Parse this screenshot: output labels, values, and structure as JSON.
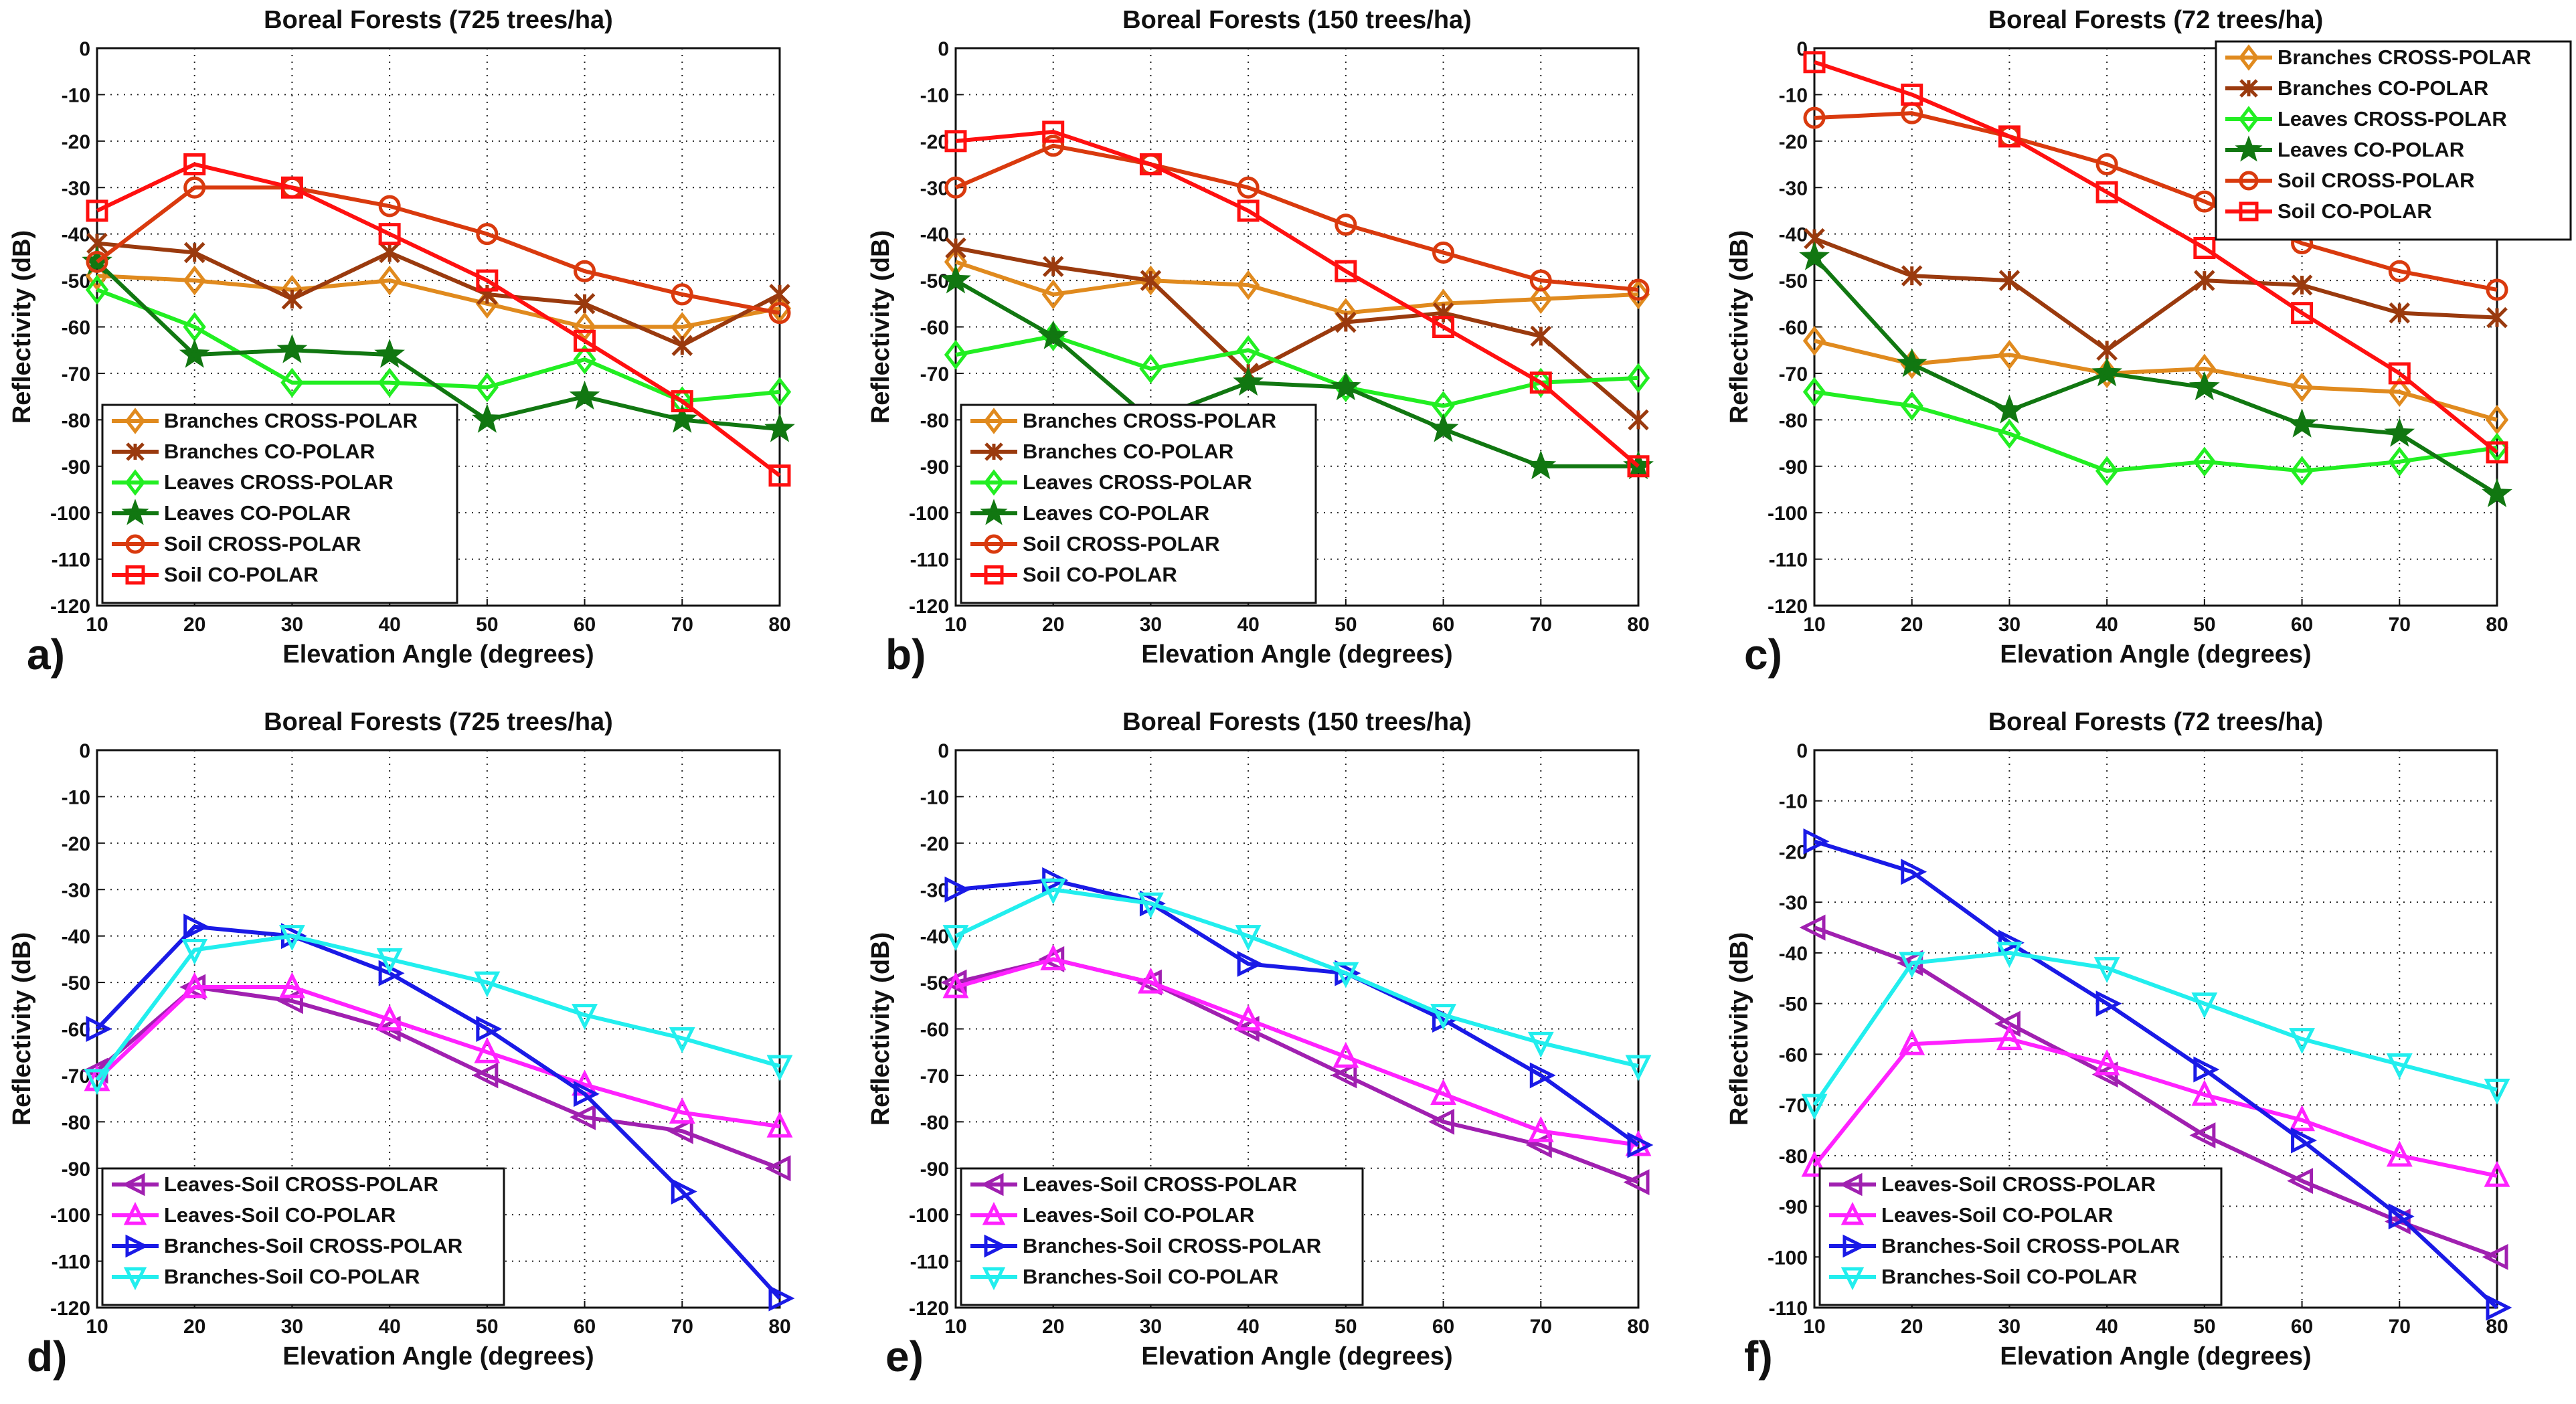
{
  "chart_data": [
    {
      "panel_label": "a)",
      "type": "line",
      "title": "Boreal Forests (725 trees/ha)",
      "xlabel": "Elevation Angle (degrees)",
      "ylabel": "Reflectivity (dB)",
      "x": [
        10,
        20,
        30,
        40,
        50,
        60,
        70,
        80
      ],
      "xticks": [
        "10",
        "20",
        "30",
        "40",
        "50",
        "60",
        "70",
        "80"
      ],
      "ylim": [
        -120,
        0
      ],
      "yticks": [
        "0",
        "-10",
        "-20",
        "-30",
        "-40",
        "-50",
        "-60",
        "-70",
        "-80",
        "-90",
        "-100",
        "-110",
        "-120"
      ],
      "grid": true,
      "legend_position": "bottom-left",
      "series": [
        {
          "name": "Branches CROSS-POLAR",
          "color": "#E08A1E",
          "marker": "diamond",
          "values": [
            -49,
            -50,
            -52,
            -50,
            -55,
            -60,
            -60,
            -56
          ]
        },
        {
          "name": "Branches CO-POLAR",
          "color": "#9A3A0E",
          "marker": "x-star",
          "values": [
            -42,
            -44,
            -54,
            -44,
            -53,
            -55,
            -64,
            -53
          ]
        },
        {
          "name": "Leaves CROSS-POLAR",
          "color": "#22EE22",
          "marker": "diamond",
          "values": [
            -52,
            -60,
            -72,
            -72,
            -73,
            -67,
            -76,
            -74
          ]
        },
        {
          "name": "Leaves CO-POLAR",
          "color": "#117711",
          "marker": "star",
          "values": [
            -46,
            -66,
            -65,
            -66,
            -80,
            -75,
            -80,
            -82
          ]
        },
        {
          "name": "Soil CROSS-POLAR",
          "color": "#D93A0E",
          "marker": "circle",
          "values": [
            -46,
            -30,
            -30,
            -34,
            -40,
            -48,
            -53,
            -57
          ]
        },
        {
          "name": "Soil CO-POLAR",
          "color": "#FF1010",
          "marker": "square",
          "values": [
            -35,
            -25,
            -30,
            -40,
            -50,
            -63,
            -76,
            -92
          ]
        }
      ]
    },
    {
      "panel_label": "b)",
      "type": "line",
      "title": "Boreal Forests (150 trees/ha)",
      "xlabel": "Elevation Angle (degrees)",
      "ylabel": "Reflectivity (dB)",
      "x": [
        10,
        20,
        30,
        40,
        50,
        60,
        70,
        80
      ],
      "xticks": [
        "10",
        "20",
        "30",
        "40",
        "50",
        "60",
        "70",
        "80"
      ],
      "ylim": [
        -120,
        0
      ],
      "yticks": [
        "0",
        "-10",
        "-20",
        "-30",
        "-40",
        "-50",
        "-60",
        "-70",
        "-80",
        "-90",
        "-100",
        "-110",
        "-120"
      ],
      "grid": true,
      "legend_position": "bottom-left",
      "series": [
        {
          "name": "Branches CROSS-POLAR",
          "color": "#E08A1E",
          "marker": "diamond",
          "values": [
            -46,
            -53,
            -50,
            -51,
            -57,
            -55,
            -54,
            -53
          ]
        },
        {
          "name": "Branches CO-POLAR",
          "color": "#9A3A0E",
          "marker": "x-star",
          "values": [
            -43,
            -47,
            -50,
            -70,
            -59,
            -57,
            -62,
            -80
          ]
        },
        {
          "name": "Leaves CROSS-POLAR",
          "color": "#22EE22",
          "marker": "diamond",
          "values": [
            -66,
            -62,
            -69,
            -65,
            -73,
            -77,
            -72,
            -71
          ]
        },
        {
          "name": "Leaves CO-POLAR",
          "color": "#117711",
          "marker": "star",
          "values": [
            -50,
            -62,
            -80,
            -72,
            -73,
            -82,
            -90,
            -90
          ]
        },
        {
          "name": "Soil CROSS-POLAR",
          "color": "#D93A0E",
          "marker": "circle",
          "values": [
            -30,
            -21,
            -25,
            -30,
            -38,
            -44,
            -50,
            -52
          ]
        },
        {
          "name": "Soil CO-POLAR",
          "color": "#FF1010",
          "marker": "square",
          "values": [
            -20,
            -18,
            -25,
            -35,
            -48,
            -60,
            -72,
            -90
          ]
        }
      ]
    },
    {
      "panel_label": "c)",
      "type": "line",
      "title": "Boreal Forests (72 trees/ha)",
      "xlabel": "Elevation Angle (degrees)",
      "ylabel": "Reflectivity (dB)",
      "x": [
        10,
        20,
        30,
        40,
        50,
        60,
        70,
        80
      ],
      "xticks": [
        "10",
        "20",
        "30",
        "40",
        "50",
        "60",
        "70",
        "80"
      ],
      "ylim": [
        -120,
        0
      ],
      "yticks": [
        "0",
        "-10",
        "-20",
        "-30",
        "-40",
        "-50",
        "-60",
        "-70",
        "-80",
        "-90",
        "-100",
        "-110",
        "-120"
      ],
      "grid": true,
      "legend_position": "top-right",
      "series": [
        {
          "name": "Branches CROSS-POLAR",
          "color": "#E08A1E",
          "marker": "diamond",
          "values": [
            -63,
            -68,
            -66,
            -70,
            -69,
            -73,
            -74,
            -80
          ]
        },
        {
          "name": "Branches CO-POLAR",
          "color": "#9A3A0E",
          "marker": "x-star",
          "values": [
            -41,
            -49,
            -50,
            -65,
            -50,
            -51,
            -57,
            -58
          ]
        },
        {
          "name": "Leaves CROSS-POLAR",
          "color": "#22EE22",
          "marker": "diamond",
          "values": [
            -74,
            -77,
            -83,
            -91,
            -89,
            -91,
            -89,
            -86
          ]
        },
        {
          "name": "Leaves CO-POLAR",
          "color": "#117711",
          "marker": "star",
          "values": [
            -45,
            -68,
            -78,
            -70,
            -73,
            -81,
            -83,
            -96
          ]
        },
        {
          "name": "Soil CROSS-POLAR",
          "color": "#D93A0E",
          "marker": "circle",
          "values": [
            -15,
            -14,
            -19,
            -25,
            -33,
            -42,
            -48,
            -52
          ]
        },
        {
          "name": "Soil CO-POLAR",
          "color": "#FF1010",
          "marker": "square",
          "values": [
            -3,
            -10,
            -19,
            -31,
            -43,
            -57,
            -70,
            -87
          ]
        }
      ]
    },
    {
      "panel_label": "d)",
      "type": "line",
      "title": "Boreal Forests (725 trees/ha)",
      "xlabel": "Elevation Angle (degrees)",
      "ylabel": "Reflectivity (dB)",
      "x": [
        10,
        20,
        30,
        40,
        50,
        60,
        70,
        80
      ],
      "xticks": [
        "10",
        "20",
        "30",
        "40",
        "50",
        "60",
        "70",
        "80"
      ],
      "ylim": [
        -120,
        0
      ],
      "yticks": [
        "0",
        "-10",
        "-20",
        "-30",
        "-40",
        "-50",
        "-60",
        "-70",
        "-80",
        "-90",
        "-100",
        "-110",
        "-120"
      ],
      "grid": true,
      "legend_position": "bottom-left",
      "series": [
        {
          "name": "Leaves-Soil CROSS-POLAR",
          "color": "#A020B0",
          "marker": "triangle-left",
          "values": [
            -69,
            -51,
            -54,
            -60,
            -70,
            -79,
            -82,
            -90
          ]
        },
        {
          "name": "Leaves-Soil CO-POLAR",
          "color": "#FF22FF",
          "marker": "triangle-up",
          "values": [
            -71,
            -51,
            -51,
            -58,
            -65,
            -72,
            -78,
            -81
          ]
        },
        {
          "name": "Branches-Soil CROSS-POLAR",
          "color": "#1A1AE6",
          "marker": "triangle-right",
          "values": [
            -60,
            -38,
            -40,
            -48,
            -60,
            -74,
            -95,
            -118
          ]
        },
        {
          "name": "Branches-Soil CO-POLAR",
          "color": "#22EEEE",
          "marker": "triangle-down",
          "values": [
            -71,
            -43,
            -40,
            -45,
            -50,
            -57,
            -62,
            -68
          ]
        }
      ]
    },
    {
      "panel_label": "e)",
      "type": "line",
      "title": "Boreal Forests (150 trees/ha)",
      "xlabel": "Elevation Angle (degrees)",
      "ylabel": "Reflectivity (dB)",
      "x": [
        10,
        20,
        30,
        40,
        50,
        60,
        70,
        80
      ],
      "xticks": [
        "10",
        "20",
        "30",
        "40",
        "50",
        "60",
        "70",
        "80"
      ],
      "ylim": [
        -120,
        0
      ],
      "yticks": [
        "0",
        "-10",
        "-20",
        "-30",
        "-40",
        "-50",
        "-60",
        "-70",
        "-80",
        "-90",
        "-100",
        "-110",
        "-120"
      ],
      "grid": true,
      "legend_position": "bottom-left",
      "series": [
        {
          "name": "Leaves-Soil CROSS-POLAR",
          "color": "#A020B0",
          "marker": "triangle-left",
          "values": [
            -50,
            -45,
            -50,
            -60,
            -70,
            -80,
            -85,
            -93
          ]
        },
        {
          "name": "Leaves-Soil CO-POLAR",
          "color": "#FF22FF",
          "marker": "triangle-up",
          "values": [
            -51,
            -45,
            -50,
            -58,
            -66,
            -74,
            -82,
            -85
          ]
        },
        {
          "name": "Branches-Soil CROSS-POLAR",
          "color": "#1A1AE6",
          "marker": "triangle-right",
          "values": [
            -30,
            -28,
            -33,
            -46,
            -48,
            -58,
            -70,
            -85
          ]
        },
        {
          "name": "Branches-Soil CO-POLAR",
          "color": "#22EEEE",
          "marker": "triangle-down",
          "values": [
            -40,
            -30,
            -33,
            -40,
            -48,
            -57,
            -63,
            -68
          ]
        }
      ]
    },
    {
      "panel_label": "f)",
      "type": "line",
      "title": "Boreal Forests (72 trees/ha)",
      "xlabel": "Elevation Angle (degrees)",
      "ylabel": "Reflectivity (dB)",
      "x": [
        10,
        20,
        30,
        40,
        50,
        60,
        70,
        80
      ],
      "xticks": [
        "10",
        "20",
        "30",
        "40",
        "50",
        "60",
        "70",
        "80"
      ],
      "ylim": [
        -110,
        0
      ],
      "yticks": [
        "0",
        "-10",
        "-20",
        "-30",
        "-40",
        "-50",
        "-60",
        "-70",
        "-80",
        "-90",
        "-100",
        "-110"
      ],
      "grid": true,
      "legend_position": "bottom-left",
      "series": [
        {
          "name": "Leaves-Soil CROSS-POLAR",
          "color": "#A020B0",
          "marker": "triangle-left",
          "values": [
            -35,
            -42,
            -54,
            -64,
            -76,
            -85,
            -93,
            -100
          ]
        },
        {
          "name": "Leaves-Soil CO-POLAR",
          "color": "#FF22FF",
          "marker": "triangle-up",
          "values": [
            -82,
            -58,
            -57,
            -62,
            -68,
            -73,
            -80,
            -84
          ]
        },
        {
          "name": "Branches-Soil CROSS-POLAR",
          "color": "#1A1AE6",
          "marker": "triangle-right",
          "values": [
            -18,
            -24,
            -38,
            -50,
            -63,
            -77,
            -92,
            -110
          ]
        },
        {
          "name": "Branches-Soil CO-POLAR",
          "color": "#22EEEE",
          "marker": "triangle-down",
          "values": [
            -70,
            -42,
            -40,
            -43,
            -50,
            -57,
            -62,
            -67
          ]
        }
      ]
    }
  ]
}
